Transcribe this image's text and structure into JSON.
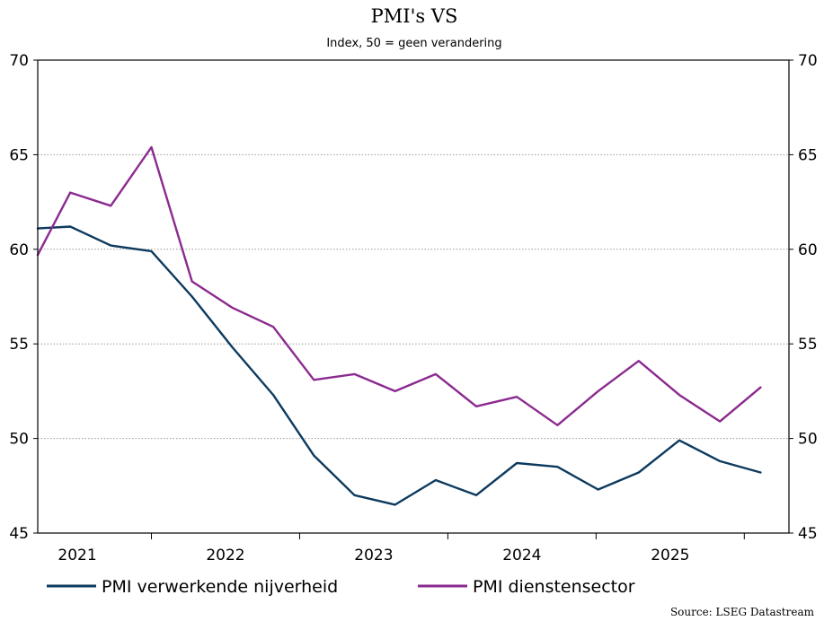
{
  "chart_data": {
    "type": "line",
    "title": "PMI's VS",
    "subtitle": "Index, 50 = geen verandering",
    "ylim": [
      45,
      70
    ],
    "yticks": [
      45,
      50,
      55,
      60,
      65,
      70
    ],
    "x_categories": [
      "2021",
      "2022",
      "2023",
      "2024",
      "2025"
    ],
    "x_range": [
      0,
      18.5
    ],
    "series": [
      {
        "name": "PMI verwerkende nijverheid",
        "color": "#0d3a5e",
        "x": [
          0,
          0.8,
          1.8,
          2.8,
          3.8,
          4.8,
          5.8,
          6.8,
          7.8,
          8.8,
          9.8,
          10.8,
          11.8,
          12.8,
          13.8,
          14.8,
          15.8,
          16.8,
          17.8
        ],
        "values": [
          61.1,
          61.2,
          60.2,
          59.9,
          57.5,
          54.8,
          52.3,
          49.1,
          47.0,
          46.5,
          47.8,
          47.0,
          48.7,
          48.5,
          47.3,
          48.2,
          49.9,
          48.8,
          48.2
        ]
      },
      {
        "name": "PMI dienstensector",
        "color": "#8b2a8f",
        "x": [
          0,
          0.8,
          1.8,
          2.8,
          3.8,
          4.8,
          5.8,
          6.8,
          7.8,
          8.8,
          9.8,
          10.8,
          11.8,
          12.8,
          13.8,
          14.8,
          15.8,
          16.8,
          17.8
        ],
        "values": [
          59.7,
          63.0,
          62.3,
          65.4,
          58.3,
          56.9,
          55.9,
          53.1,
          53.4,
          52.5,
          53.4,
          51.7,
          52.2,
          50.7,
          52.5,
          54.1,
          52.3,
          50.9,
          52.7
        ]
      }
    ],
    "legend_position": "bottom",
    "source": "Source: LSEG Datastream"
  }
}
